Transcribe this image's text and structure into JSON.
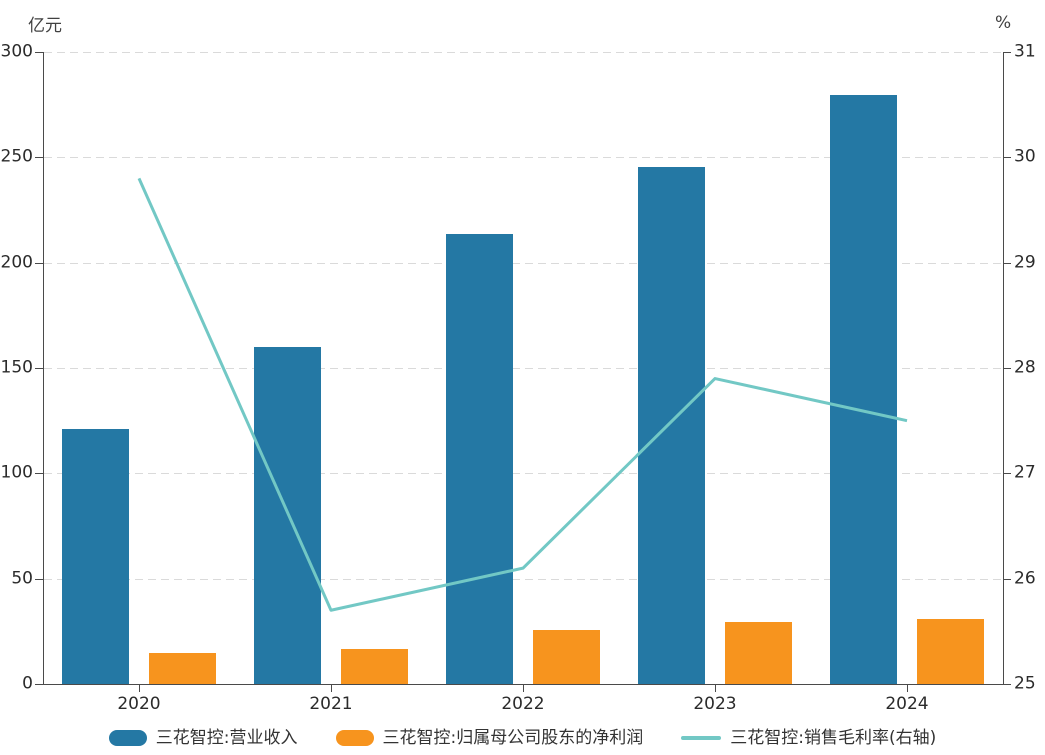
{
  "chart_data": {
    "type": "bar",
    "subtype": "grouped-bar-with-line-combo",
    "categories": [
      "2020",
      "2021",
      "2022",
      "2023",
      "2024"
    ],
    "series": [
      {
        "name": "三花智控:营业收入",
        "type": "bar",
        "axis": "left",
        "color": "#2478A4",
        "values": [
          121.1,
          160.2,
          213.5,
          245.6,
          279.5
        ]
      },
      {
        "name": "三花智控:归属母公司股东的净利润",
        "type": "bar",
        "axis": "left",
        "color": "#F7941E",
        "values": [
          14.6,
          16.8,
          25.7,
          29.2,
          31.0
        ]
      },
      {
        "name": "三花智控:销售毛利率(右轴)",
        "type": "line",
        "axis": "right",
        "color": "#72C8C5",
        "values": [
          29.8,
          25.7,
          26.1,
          27.9,
          27.5
        ]
      }
    ],
    "left_axis": {
      "label": "亿元",
      "min": 0,
      "max": 300,
      "step": 50,
      "tick_labels": [
        "0",
        "50",
        "100",
        "150",
        "200",
        "250",
        "300"
      ]
    },
    "right_axis": {
      "label": "%",
      "min": 25,
      "max": 31,
      "step": 1,
      "tick_labels": [
        "25",
        "26",
        "27",
        "28",
        "29",
        "30",
        "31"
      ]
    },
    "title": "",
    "grid": "dashed-horizontal",
    "legend_position": "bottom"
  },
  "colors": {
    "axis": "#4a4a4a",
    "gridline": "#dadada",
    "background": "#ffffff",
    "text": "#2b2b2b"
  }
}
